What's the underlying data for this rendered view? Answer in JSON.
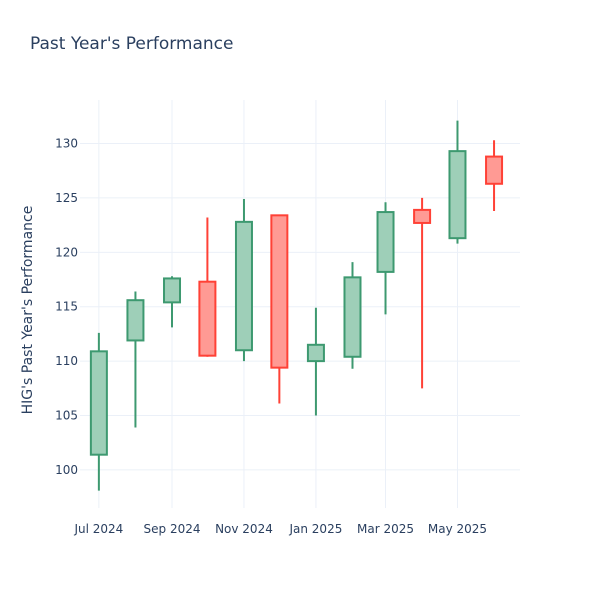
{
  "chart_data": {
    "type": "candlestick",
    "title": "Past Year's Performance",
    "xlabel": "",
    "ylabel": "HIG's Past Year's Performance",
    "ylim": [
      96.5,
      134
    ],
    "y_ticks": [
      100,
      105,
      110,
      115,
      120,
      125,
      130
    ],
    "x_range": [
      "2024-06-15",
      "2025-06-23"
    ],
    "x_ticks": [
      {
        "date": "2024-07-01",
        "label": "Jul 2024"
      },
      {
        "date": "2024-09-01",
        "label": "Sep 2024"
      },
      {
        "date": "2024-11-01",
        "label": "Nov 2024"
      },
      {
        "date": "2025-01-01",
        "label": "Jan 2025"
      },
      {
        "date": "2025-03-01",
        "label": "Mar 2025"
      },
      {
        "date": "2025-05-01",
        "label": "May 2025"
      }
    ],
    "grid": true,
    "increasing_color": "#3d9970",
    "increasing_fill": "#9ecfb8",
    "decreasing_color": "#ff4136",
    "decreasing_fill": "#ff9a94",
    "candles": [
      {
        "date": "2024-07-01",
        "open": 101.4,
        "high": 112.6,
        "low": 98.1,
        "close": 110.9
      },
      {
        "date": "2024-08-01",
        "open": 111.9,
        "high": 116.4,
        "low": 103.9,
        "close": 115.6
      },
      {
        "date": "2024-09-01",
        "open": 115.4,
        "high": 117.8,
        "low": 113.1,
        "close": 117.6
      },
      {
        "date": "2024-10-01",
        "open": 117.3,
        "high": 123.2,
        "low": 110.4,
        "close": 110.5
      },
      {
        "date": "2024-11-01",
        "open": 111.0,
        "high": 124.9,
        "low": 110.0,
        "close": 122.8
      },
      {
        "date": "2024-12-01",
        "open": 123.4,
        "high": 123.4,
        "low": 106.1,
        "close": 109.4
      },
      {
        "date": "2025-01-01",
        "open": 110.0,
        "high": 114.9,
        "low": 105.0,
        "close": 111.5
      },
      {
        "date": "2025-02-01",
        "open": 110.4,
        "high": 119.1,
        "low": 109.3,
        "close": 117.7
      },
      {
        "date": "2025-03-01",
        "open": 118.2,
        "high": 124.6,
        "low": 114.3,
        "close": 123.7
      },
      {
        "date": "2025-04-01",
        "open": 123.9,
        "high": 125.0,
        "low": 107.5,
        "close": 122.7
      },
      {
        "date": "2025-05-01",
        "open": 121.3,
        "high": 132.1,
        "low": 120.8,
        "close": 129.3
      },
      {
        "date": "2025-06-01",
        "open": 128.8,
        "high": 130.3,
        "low": 123.8,
        "close": 126.3
      }
    ]
  }
}
